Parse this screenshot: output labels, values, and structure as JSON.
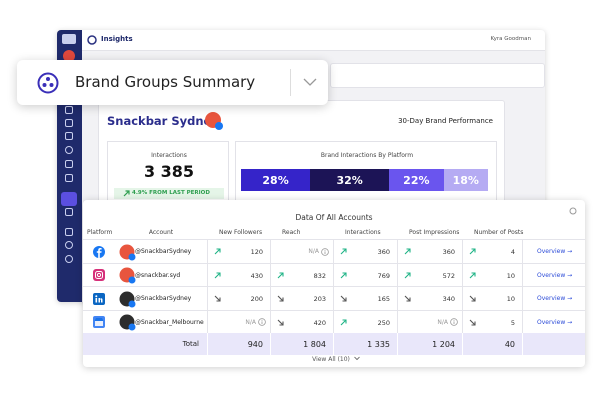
{
  "app": {
    "page_title": "Insights",
    "user": "Kyra Goodman"
  },
  "dropdown": {
    "label": "Brand Groups Summary"
  },
  "brand": {
    "name": "Snackbar Sydney",
    "period": "30-Day Brand Performance"
  },
  "interactions": {
    "title": "Interactions",
    "value": "3 385",
    "change": "4.9% FROM LAST PERIOD"
  },
  "platform_split": {
    "title": "Brand Interactions By Platform",
    "segments": [
      {
        "value": 28,
        "label": "28%",
        "color": "#3524c9"
      },
      {
        "value": 32,
        "label": "32%",
        "color": "#1c1456"
      },
      {
        "value": 22,
        "label": "22%",
        "color": "#6a55ee"
      },
      {
        "value": 18,
        "label": "18%",
        "color": "#b5abf3"
      }
    ]
  },
  "table": {
    "title": "Data Of All Accounts",
    "columns": [
      "Platform",
      "Account",
      "New Followers",
      "Reach",
      "Interactions",
      "Post Impressions",
      "Number of Posts"
    ],
    "rows": [
      {
        "platform": "facebook",
        "account": "@SnackbarSydney",
        "cells": [
          {
            "text": "120",
            "trend": "up"
          },
          {
            "text": "N/A"
          },
          {
            "text": "360",
            "trend": "up"
          },
          {
            "text": "360",
            "trend": "up"
          },
          {
            "text": "4",
            "trend": "up"
          }
        ],
        "action": "Overview →"
      },
      {
        "platform": "instagram",
        "account": "@snackbar.syd",
        "cells": [
          {
            "text": "430",
            "trend": "up"
          },
          {
            "text": "832",
            "trend": "up"
          },
          {
            "text": "769",
            "trend": "up"
          },
          {
            "text": "572",
            "trend": "up"
          },
          {
            "text": "10",
            "trend": "up"
          }
        ],
        "action": "Overview →"
      },
      {
        "platform": "linkedin",
        "account": "@SnackbarSydney",
        "cells": [
          {
            "text": "200",
            "trend": "down"
          },
          {
            "text": "203",
            "trend": "down"
          },
          {
            "text": "165",
            "trend": "down"
          },
          {
            "text": "340",
            "trend": "down"
          },
          {
            "text": "10",
            "trend": "down"
          }
        ],
        "action": "Overview →"
      },
      {
        "platform": "google-business",
        "account": "@Snackbar_Melbourne",
        "cells": [
          {
            "text": "N/A"
          },
          {
            "text": "420",
            "trend": "down"
          },
          {
            "text": "250",
            "trend": "up"
          },
          {
            "text": "N/A"
          },
          {
            "text": "5",
            "trend": "down"
          }
        ],
        "action": "Overview →"
      }
    ],
    "total": {
      "label": "Total",
      "cells": [
        "940",
        "1 804",
        "1 335",
        "1 204",
        "40"
      ]
    },
    "footer": "View All (10)"
  }
}
